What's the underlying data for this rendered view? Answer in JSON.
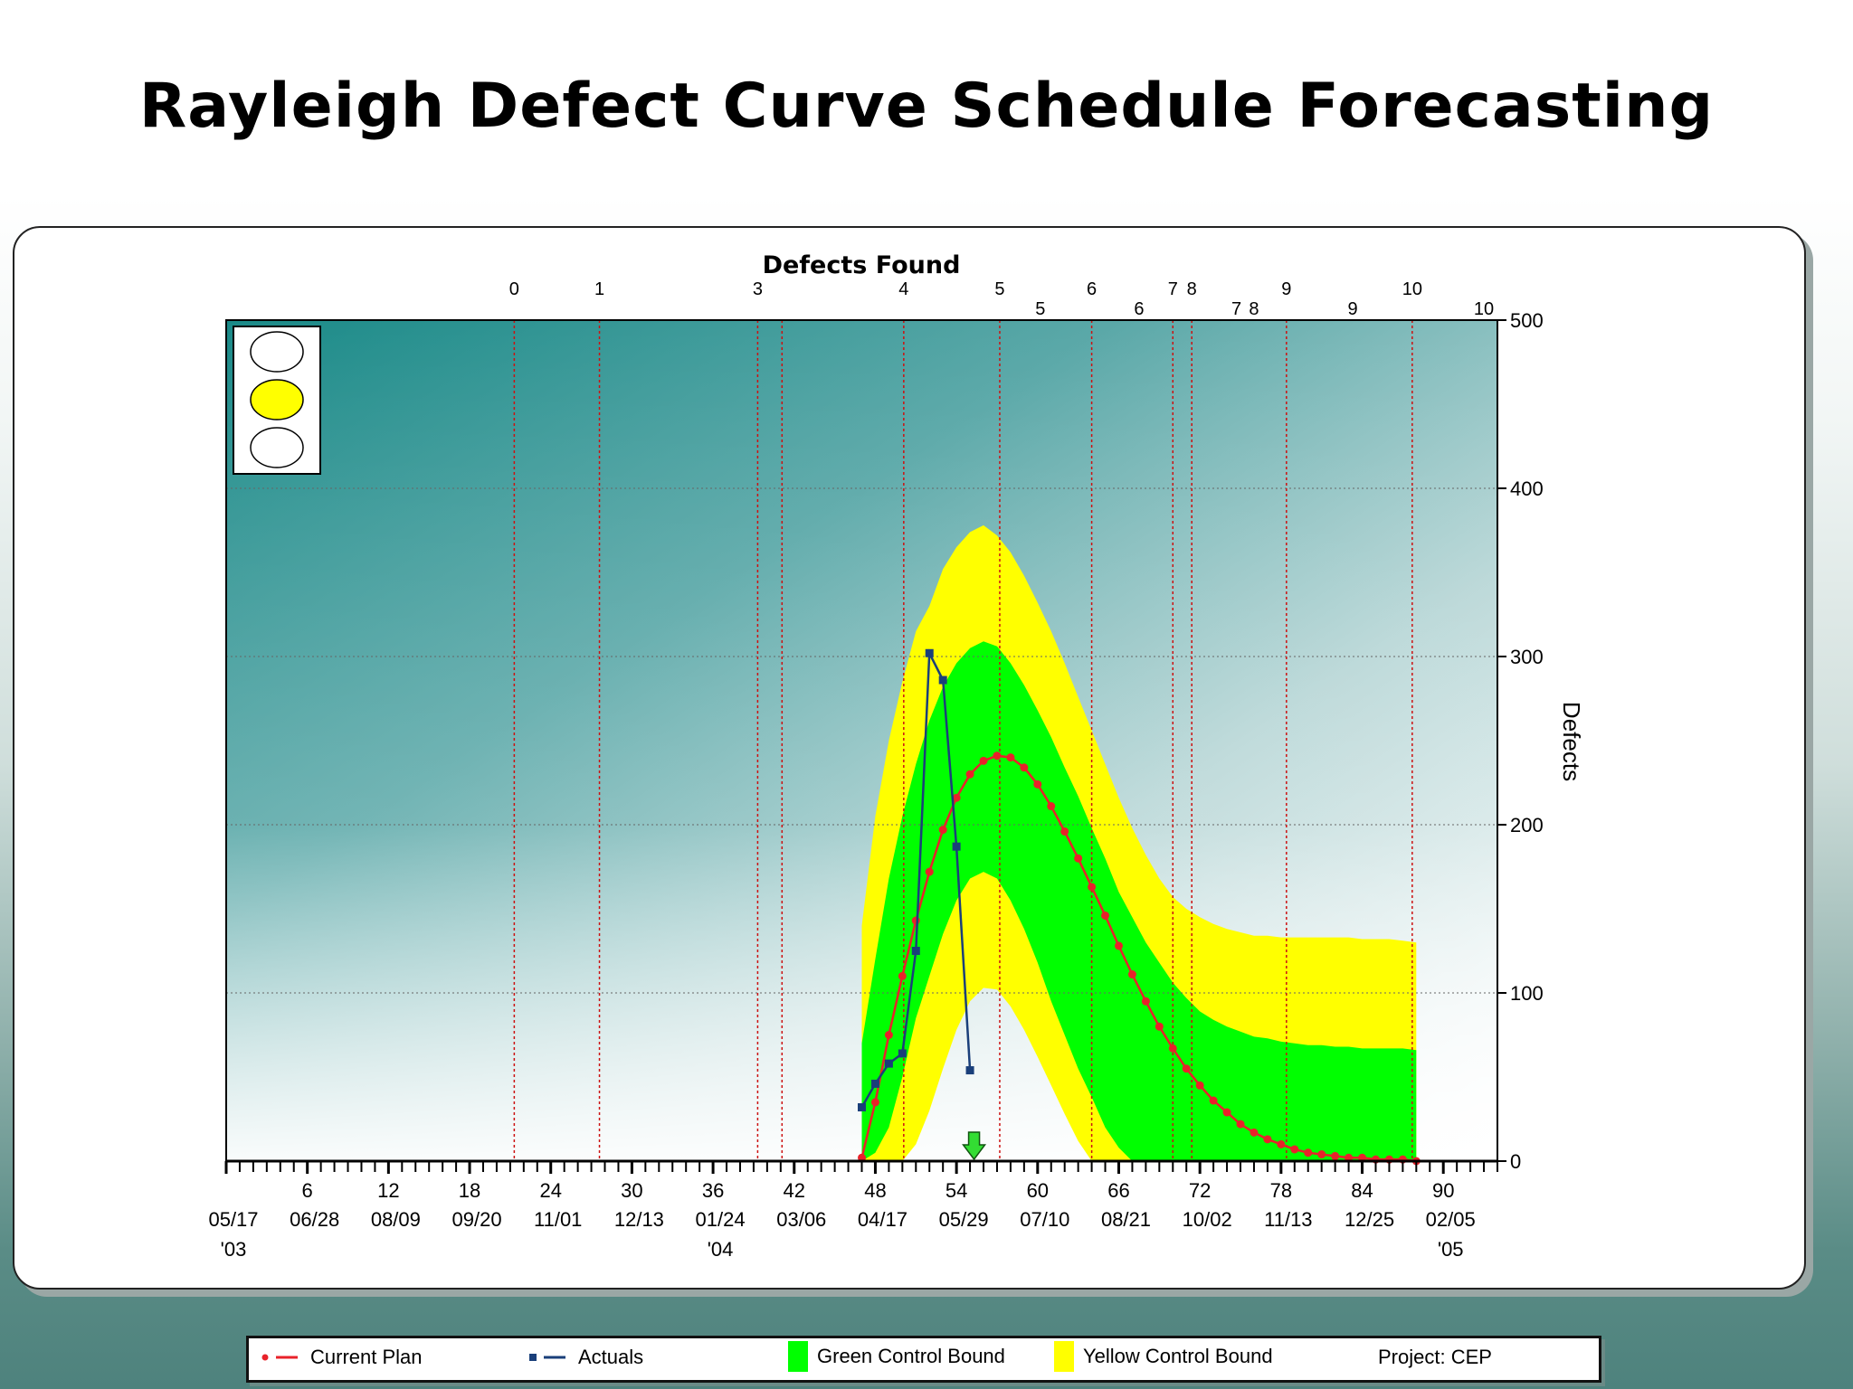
{
  "title": "Rayleigh Defect Curve Schedule Forecasting",
  "colors": {
    "plan": "#e8222a",
    "actuals": "#1a3f7a",
    "green_bound": "#00ff00",
    "yellow_bound": "#ffff00",
    "grid_red": "#cc1111",
    "indicator_on": "#ffff00",
    "marker_arrow": "#33dd33"
  },
  "legend": {
    "plan": "Current Plan",
    "actuals": "Actuals",
    "green": "Green Control Bound",
    "yellow": "Yellow  Control Bound",
    "project": "Project:  CEP"
  },
  "chart_data": {
    "type": "area",
    "title": "Defects Found",
    "ylabel": "Defects",
    "xlim": [
      0,
      94
    ],
    "ylim": [
      0,
      500
    ],
    "y_ticks": [
      0,
      100,
      200,
      300,
      400,
      500
    ],
    "x_ticks": [
      6,
      12,
      18,
      24,
      30,
      36,
      42,
      48,
      54,
      60,
      66,
      72,
      78,
      84,
      90
    ],
    "date_labels": [
      {
        "x": 0,
        "label": "05/17",
        "year": "'03"
      },
      {
        "x": 6,
        "label": "06/28"
      },
      {
        "x": 12,
        "label": "08/09"
      },
      {
        "x": 18,
        "label": "09/20"
      },
      {
        "x": 24,
        "label": "11/01"
      },
      {
        "x": 30,
        "label": "12/13"
      },
      {
        "x": 36,
        "label": "01/24",
        "year": "'04"
      },
      {
        "x": 42,
        "label": "03/06"
      },
      {
        "x": 48,
        "label": "04/17"
      },
      {
        "x": 54,
        "label": "05/29"
      },
      {
        "x": 60,
        "label": "07/10"
      },
      {
        "x": 66,
        "label": "08/21"
      },
      {
        "x": 72,
        "label": "10/02"
      },
      {
        "x": 78,
        "label": "11/13"
      },
      {
        "x": 84,
        "label": "12/25"
      },
      {
        "x": 90,
        "label": "02/05",
        "year": "'05"
      }
    ],
    "milestones": [
      {
        "x": 21.3,
        "label": "0",
        "row": 1
      },
      {
        "x": 27.6,
        "label": "1",
        "row": 1
      },
      {
        "x": 39.3,
        "label": "3",
        "row": 1
      },
      {
        "x": 41.1,
        "label": "",
        "row": 1
      },
      {
        "x": 50.1,
        "label": "4",
        "row": 1
      },
      {
        "x": 57.2,
        "label": "5",
        "row": 1
      },
      {
        "x": 60.2,
        "label": "5",
        "row": 2
      },
      {
        "x": 64.0,
        "label": "6",
        "row": 1
      },
      {
        "x": 67.5,
        "label": "6",
        "row": 2
      },
      {
        "x": 70.0,
        "label": "7",
        "row": 1
      },
      {
        "x": 71.4,
        "label": "8",
        "row": 1
      },
      {
        "x": 74.7,
        "label": "7",
        "row": 2
      },
      {
        "x": 76.0,
        "label": "8",
        "row": 2
      },
      {
        "x": 78.4,
        "label": "9",
        "row": 1
      },
      {
        "x": 83.3,
        "label": "9",
        "row": 2
      },
      {
        "x": 87.7,
        "label": "10",
        "row": 1
      },
      {
        "x": 93.0,
        "label": "10",
        "row": 2
      }
    ],
    "current_marker_x": 55.3,
    "series": [
      {
        "name": "Current Plan",
        "x": [
          47,
          48,
          49,
          50,
          51,
          52,
          53,
          54,
          55,
          56,
          57,
          58,
          59,
          60,
          61,
          62,
          63,
          64,
          65,
          66,
          67,
          68,
          69,
          70,
          71,
          72,
          73,
          74,
          75,
          76,
          77,
          78,
          79,
          80,
          81,
          82,
          83,
          84,
          85,
          86,
          87,
          88
        ],
        "values": [
          2,
          35,
          75,
          110,
          143,
          172,
          197,
          216,
          230,
          238,
          241,
          240,
          234,
          224,
          211,
          196,
          180,
          163,
          146,
          128,
          111,
          95,
          80,
          67,
          55,
          45,
          36,
          29,
          22,
          17,
          13,
          10,
          7,
          5,
          4,
          3,
          2,
          2,
          1,
          1,
          1,
          0
        ]
      },
      {
        "name": "Actuals",
        "x": [
          47,
          48,
          49,
          50,
          51,
          52,
          53,
          54,
          55
        ],
        "values": [
          32,
          46,
          58,
          64,
          125,
          302,
          286,
          187,
          54
        ]
      }
    ],
    "bounds": {
      "x": [
        47,
        48,
        49,
        50,
        51,
        52,
        53,
        54,
        55,
        56,
        57,
        58,
        59,
        60,
        61,
        62,
        63,
        64,
        65,
        66,
        67,
        68,
        69,
        70,
        71,
        72,
        73,
        74,
        75,
        76,
        77,
        78,
        79,
        80,
        81,
        82,
        83,
        84,
        85,
        86,
        87,
        88
      ],
      "yellow_upper": [
        140,
        205,
        250,
        285,
        315,
        330,
        352,
        365,
        374,
        378,
        372,
        362,
        348,
        332,
        315,
        296,
        276,
        256,
        236,
        216,
        198,
        182,
        168,
        157,
        150,
        145,
        141,
        138,
        136,
        134,
        134,
        133,
        133,
        133,
        133,
        133,
        133,
        132,
        132,
        132,
        131,
        130
      ],
      "green_upper": [
        70,
        120,
        168,
        205,
        236,
        262,
        282,
        296,
        305,
        309,
        306,
        296,
        283,
        268,
        252,
        234,
        217,
        198,
        180,
        160,
        145,
        130,
        118,
        106,
        97,
        89,
        84,
        80,
        77,
        74,
        73,
        71,
        70,
        69,
        69,
        68,
        68,
        67,
        67,
        67,
        67,
        66
      ],
      "green_lower": [
        0,
        5,
        20,
        50,
        85,
        110,
        135,
        155,
        168,
        172,
        168,
        155,
        138,
        118,
        95,
        75,
        55,
        38,
        20,
        8,
        0,
        0,
        0,
        0,
        0,
        0,
        0,
        0,
        0,
        0,
        0,
        0,
        0,
        0,
        0,
        0,
        0,
        0,
        0,
        0,
        0,
        0
      ],
      "yellow_lower": [
        0,
        0,
        0,
        0,
        10,
        30,
        55,
        78,
        95,
        103,
        102,
        92,
        78,
        62,
        45,
        28,
        12,
        0,
        0,
        0,
        0,
        0,
        0,
        0,
        0,
        0,
        0,
        0,
        0,
        0,
        0,
        0,
        0,
        0,
        0,
        0,
        0,
        0,
        0,
        0,
        0,
        0
      ]
    }
  }
}
